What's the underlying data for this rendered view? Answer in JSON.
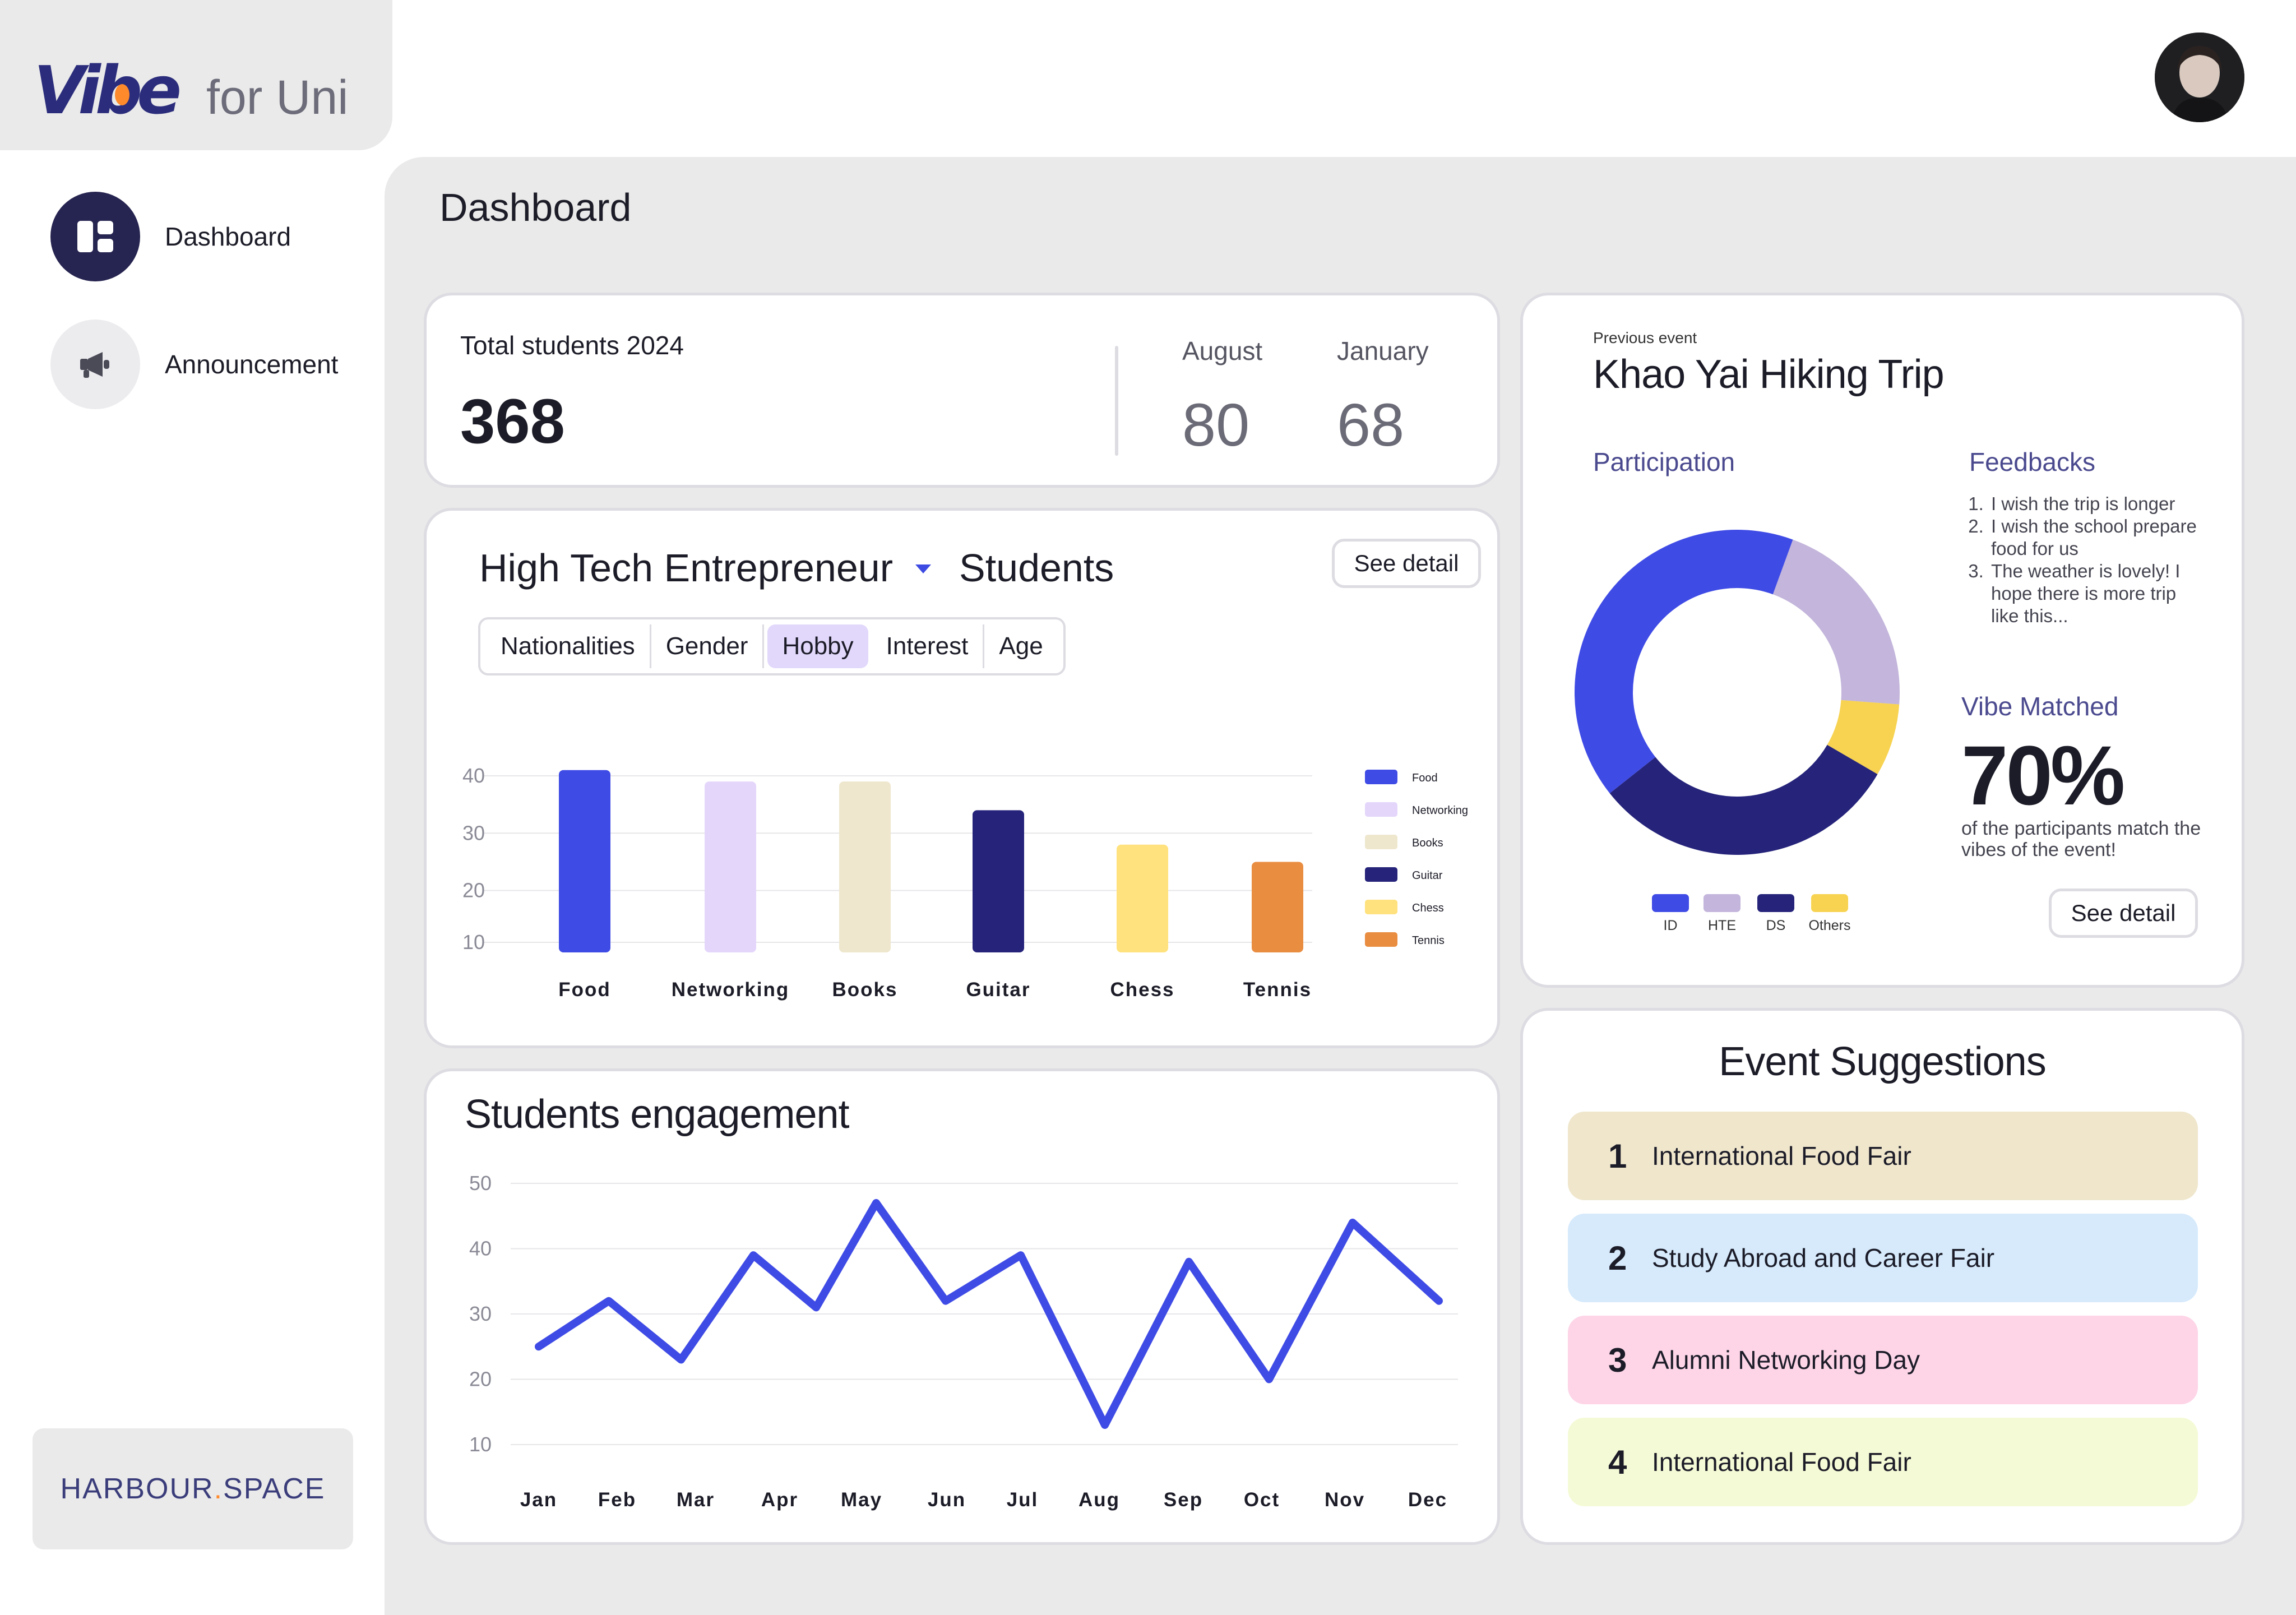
{
  "app": {
    "brand": "Vibe",
    "brand_suffix": "for Uni"
  },
  "sidebar": {
    "items": [
      {
        "label": "Dashboard",
        "icon": "dashboard-icon",
        "active": true
      },
      {
        "label": "Announcement",
        "icon": "megaphone-icon",
        "active": false
      }
    ],
    "footer_left": "HARBOUR",
    "footer_dot": ".",
    "footer_right": "SPACE"
  },
  "header": {
    "title": "Dashboard"
  },
  "total": {
    "label": "Total students 2024",
    "value": "368",
    "months": [
      {
        "label": "August",
        "value": "80"
      },
      {
        "label": "January",
        "value": "68"
      }
    ]
  },
  "hte": {
    "program": "High Tech Entrepreneur",
    "title_suffix": "Students",
    "see_detail": "See detail",
    "tabs": [
      "Nationalities",
      "Gender",
      "Hobby",
      "Interest",
      "Age"
    ],
    "active_tab": "Hobby"
  },
  "event": {
    "previous_label": "Previous event",
    "title": "Khao Yai Hiking Trip",
    "participation_label": "Participation",
    "feedbacks_label": "Feedbacks",
    "feedbacks": [
      "I wish the trip is longer",
      "I wish the school prepare food for us",
      "The weather is lovely! I hope there is more trip like this..."
    ],
    "vibe_label": "Vibe Matched",
    "vibe_value": "70%",
    "vibe_desc": "of the participants match the vibes of the event!",
    "see_detail": "See detail"
  },
  "suggestions": {
    "title": "Event Suggestions",
    "items": [
      {
        "num": "1",
        "label": "International Food Fair",
        "color": "#efe6cc"
      },
      {
        "num": "2",
        "label": "Study Abroad and Career Fair",
        "color": "#d6eafc"
      },
      {
        "num": "3",
        "label": "Alumni Networking Day",
        "color": "#fdd5e7"
      },
      {
        "num": "4",
        "label": "International Food Fair",
        "color": "#f5fad6"
      }
    ]
  },
  "engagement": {
    "title": "Students engagement"
  },
  "chart_data": [
    {
      "type": "bar",
      "categories": [
        "Food",
        "Networking",
        "Books",
        "Guitar",
        "Chess",
        "Tennis"
      ],
      "values": [
        41,
        39,
        39,
        34,
        28,
        25
      ],
      "colors": [
        "#3f4be5",
        "#e4d6fb",
        "#eee7cd",
        "#25237a",
        "#ffe27d",
        "#e98d41"
      ],
      "legend": [
        "Food",
        "Networking",
        "Books",
        "Guitar",
        "Chess",
        "Tennis"
      ],
      "legend_position": "right",
      "yticks": [
        10,
        20,
        30,
        40
      ],
      "ylim": [
        10,
        44
      ],
      "grid": true
    },
    {
      "type": "pie",
      "donut": true,
      "labels": [
        "ID",
        "HTE",
        "DS",
        "Others"
      ],
      "values": [
        40,
        20,
        30,
        7
      ],
      "colors": [
        "#3f4be5",
        "#c3b5db",
        "#25237a",
        "#f7d351"
      ],
      "legend_position": "bottom"
    },
    {
      "type": "line",
      "categories": [
        "Jan",
        "Feb",
        "Mar",
        "Apr",
        "May",
        "Jun",
        "Jul",
        "Aug",
        "Sep",
        "Oct",
        "Nov",
        "Dec"
      ],
      "values": [
        25,
        32,
        23,
        39,
        31,
        47,
        32,
        39,
        13,
        38,
        20,
        44,
        32
      ],
      "x": [
        0,
        1,
        2,
        3,
        3.5,
        4,
        5,
        6,
        7,
        8,
        9,
        10,
        11
      ],
      "color": "#3f4be5",
      "yticks": [
        10,
        20,
        30,
        40,
        50
      ],
      "ylim": [
        10,
        50
      ],
      "grid": true
    }
  ]
}
